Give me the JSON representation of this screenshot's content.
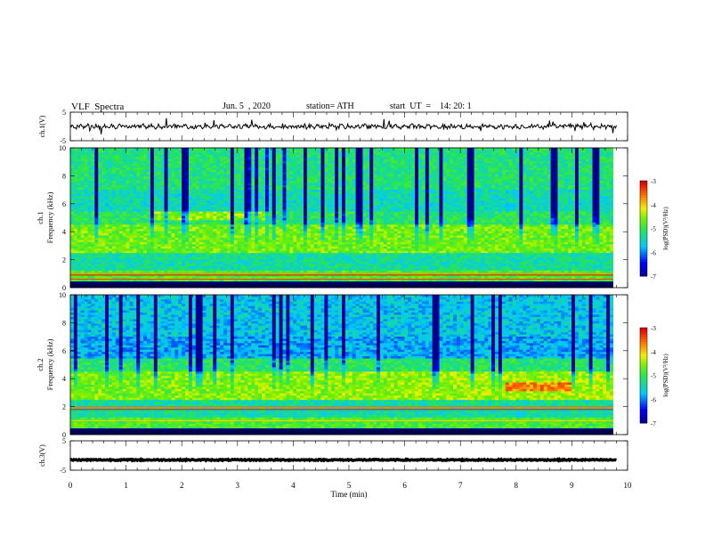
{
  "header": {
    "title": "VLF  Spectra",
    "date": "Jun. 5  , 2020",
    "station": "station= ATH",
    "start": "start  UT  =    14: 20: 1"
  },
  "chart_data": [
    {
      "type": "line",
      "panel": "ch1-waveform",
      "ylabel": "ch.1(V)",
      "ylim": [
        -5,
        5
      ],
      "yticks": [
        "5",
        "-5"
      ],
      "xlim": [
        0,
        10
      ],
      "trace_color": "#000000",
      "mean_level": 0
    },
    {
      "type": "heatmap",
      "panel": "ch1-spectrogram",
      "ylabel_lines": [
        "ch.1",
        "Frequency  (kHz)"
      ],
      "ylim": [
        0,
        10
      ],
      "yticks": [
        "0",
        "2",
        "4",
        "6",
        "8",
        "10"
      ],
      "xlim": [
        0,
        10
      ],
      "colorbar": {
        "label": "log(PSD)(V²/Hz)",
        "range": [
          -7,
          -3
        ],
        "ticks": [
          "-3",
          "-4",
          "-5",
          "-6",
          "-7"
        ]
      }
    },
    {
      "type": "heatmap",
      "panel": "ch2-spectrogram",
      "ylabel_lines": [
        "ch.2",
        "Frequency  (kHz)"
      ],
      "ylim": [
        0,
        10
      ],
      "yticks": [
        "0",
        "2",
        "4",
        "6",
        "8",
        "10"
      ],
      "xlim": [
        0,
        10
      ],
      "colorbar": {
        "label": "log(PSD)(V²/Hz)",
        "range": [
          -7,
          -3
        ],
        "ticks": [
          "-3",
          "-4",
          "-5",
          "-6",
          "-7"
        ]
      }
    },
    {
      "type": "line",
      "panel": "ch3-waveform",
      "ylabel": "ch.3(V)",
      "ylim": [
        -5,
        5
      ],
      "yticks": [
        "5",
        "-5"
      ],
      "xlim": [
        0,
        10
      ],
      "trace_color": "#000000",
      "mean_level": -1.5
    }
  ],
  "xaxis": {
    "label": "Time  (min)",
    "ticks": [
      "0",
      "1",
      "2",
      "3",
      "4",
      "5",
      "6",
      "7",
      "8",
      "9",
      "10"
    ]
  }
}
